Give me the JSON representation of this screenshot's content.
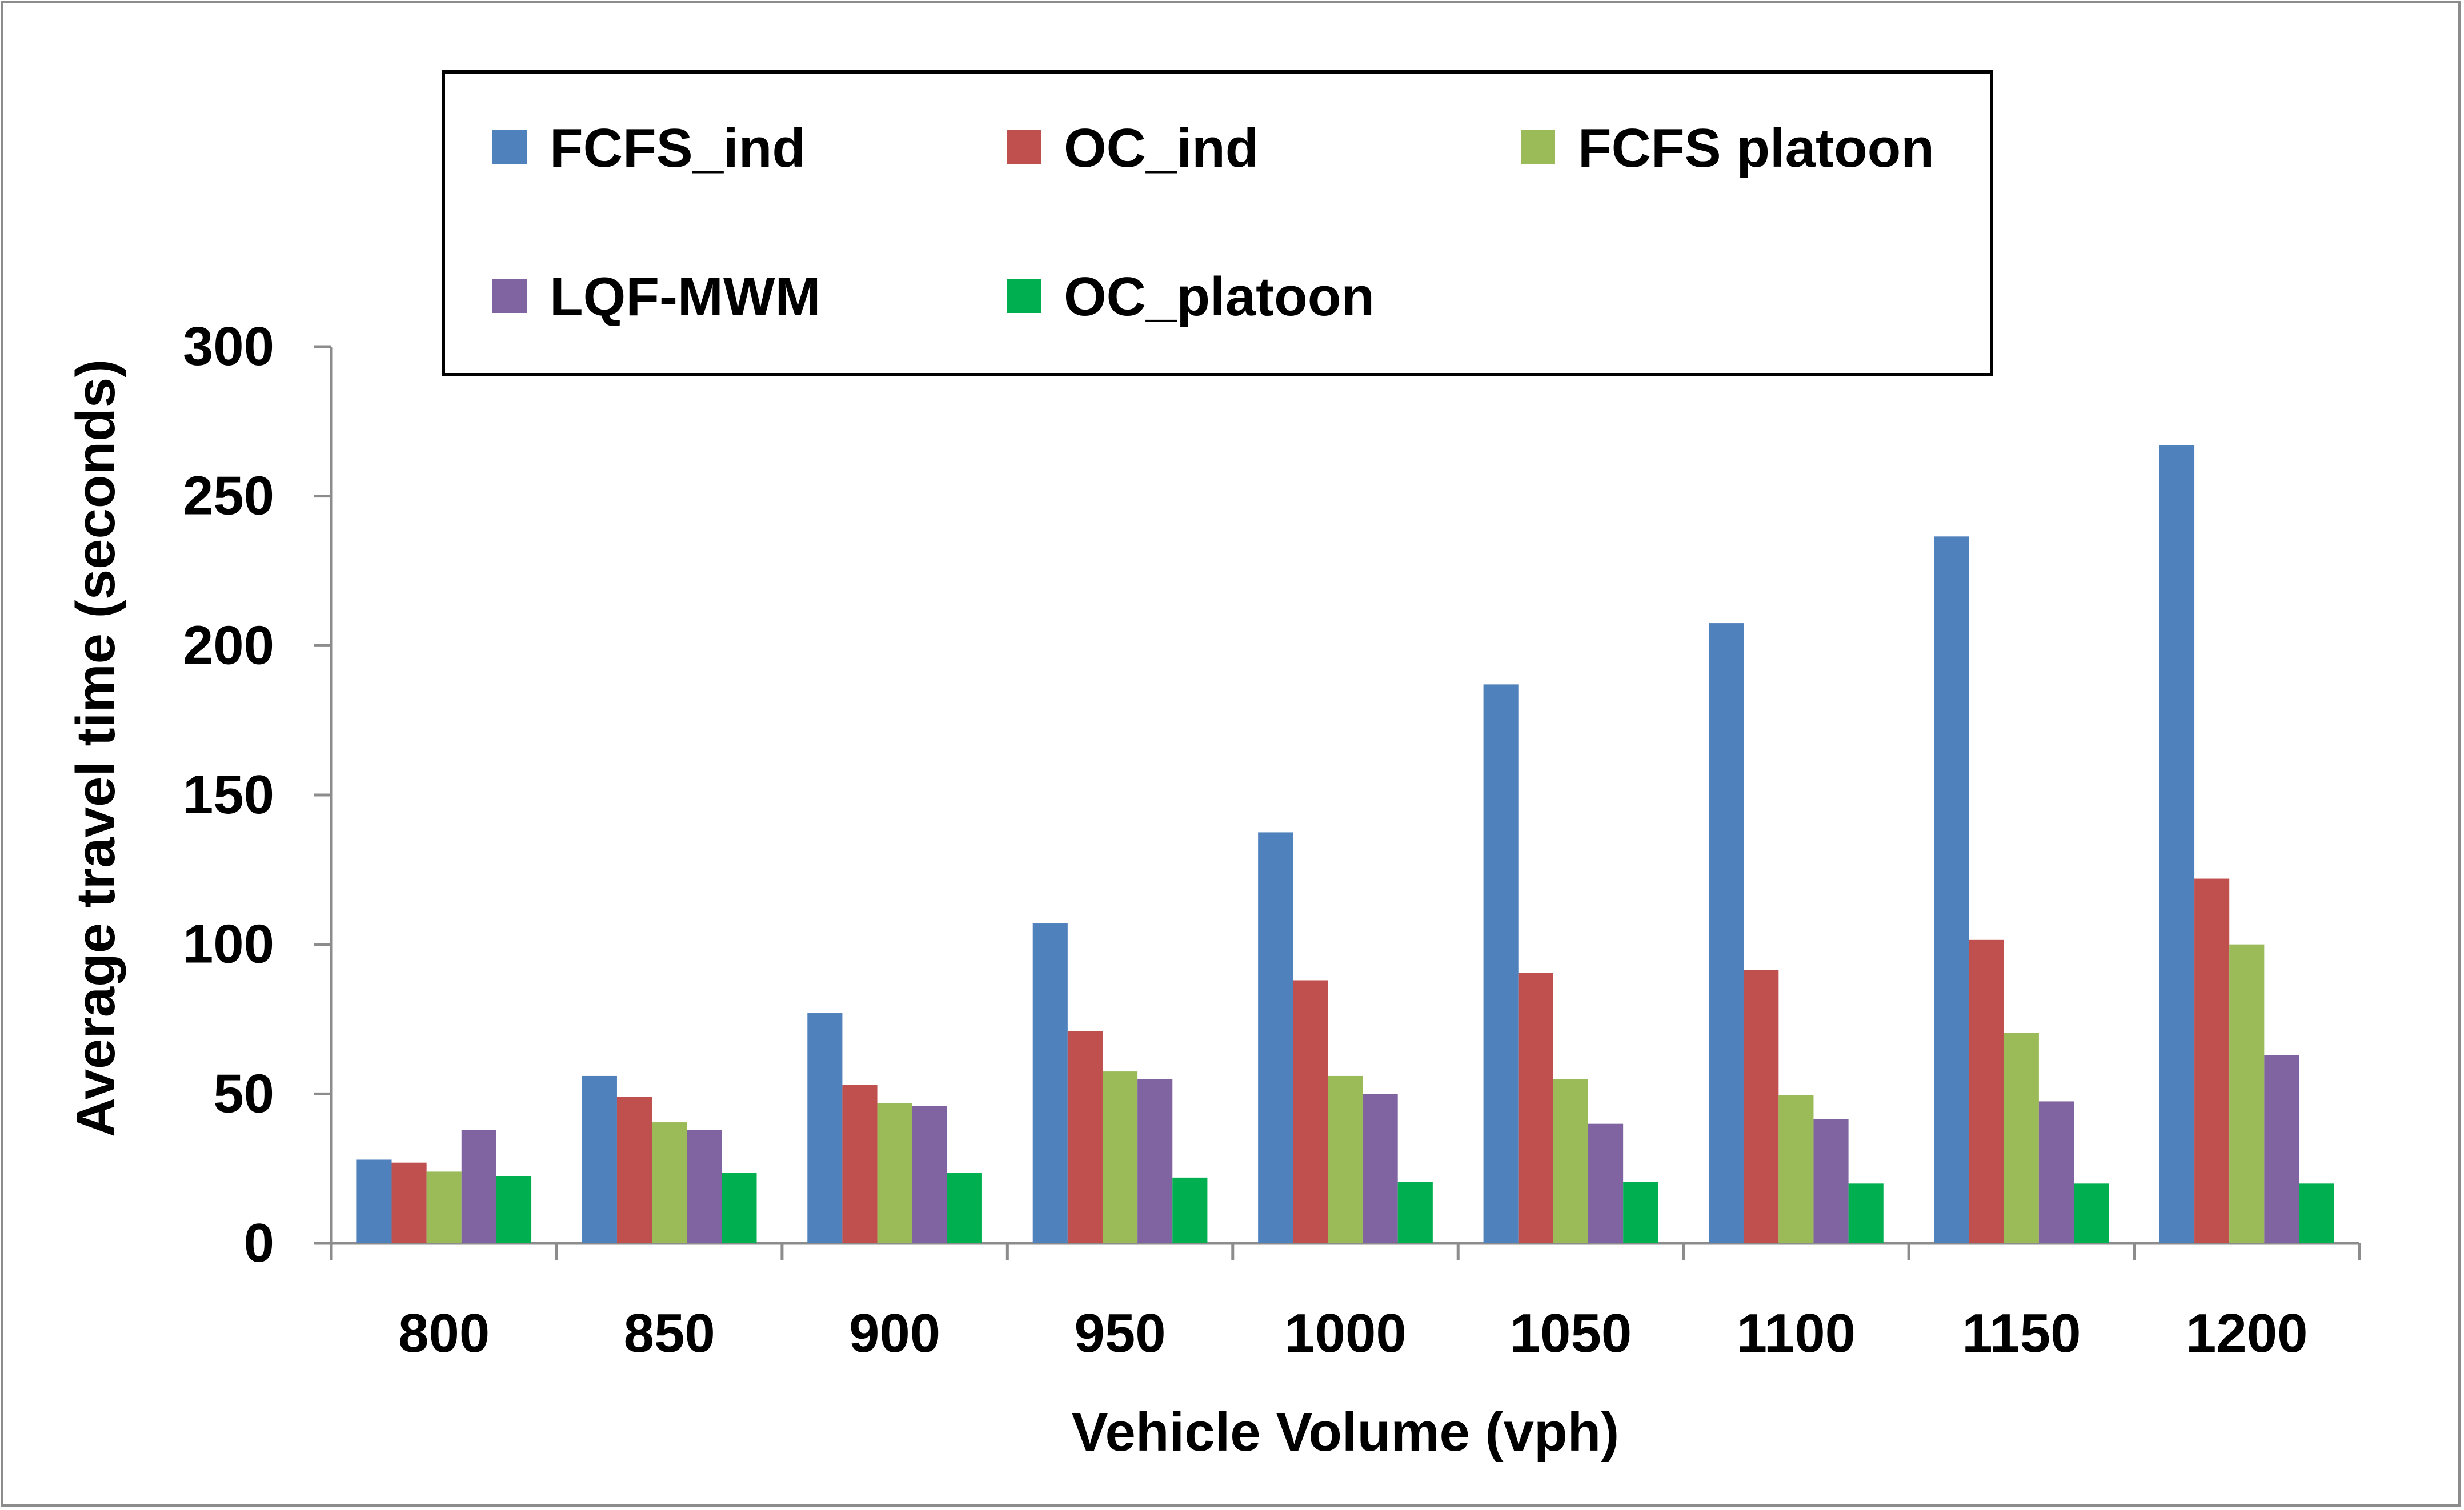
{
  "chart_data": {
    "type": "bar",
    "title": "",
    "xlabel": "Vehicle Volume (vph)",
    "ylabel": "Average travel time (seconds)",
    "ylim": [
      0,
      300
    ],
    "yticks": [
      "0",
      "50",
      "100",
      "150",
      "200",
      "250",
      "300"
    ],
    "grid": false,
    "legend_position": "top",
    "categories": [
      "800",
      "850",
      "900",
      "950",
      "1000",
      "1050",
      "1100",
      "1150",
      "1200"
    ],
    "series": [
      {
        "name": "FCFS_ind",
        "color": "#4F81BD",
        "values": [
          28,
          56,
          77,
          107,
          137.5,
          187,
          207.5,
          236.5,
          267
        ]
      },
      {
        "name": "OC_ind",
        "color": "#C0504D",
        "values": [
          27,
          49,
          53,
          71,
          88,
          90.5,
          91.5,
          101.5,
          122
        ]
      },
      {
        "name": "FCFS platoon",
        "color": "#9BBB59",
        "values": [
          24,
          40.5,
          47,
          57.5,
          56,
          55,
          49.5,
          70.5,
          100
        ]
      },
      {
        "name": "LQF-MWM",
        "color": "#8064A2",
        "values": [
          38,
          38,
          46,
          55,
          50,
          40,
          41.5,
          47.5,
          63
        ]
      },
      {
        "name": "OC_platoon",
        "color": "#00B050",
        "values": [
          22.5,
          23.5,
          23.5,
          22,
          20.5,
          20.5,
          20,
          20,
          20
        ]
      }
    ]
  }
}
